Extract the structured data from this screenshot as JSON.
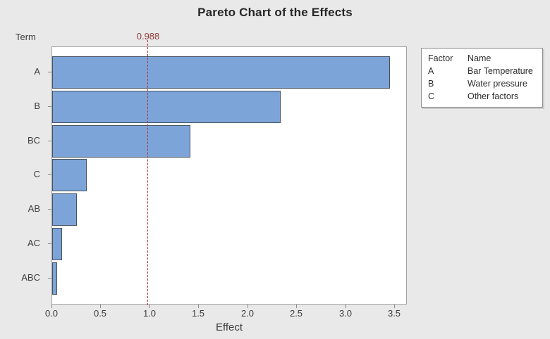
{
  "title": "Pareto Chart of the Effects",
  "chart_data": {
    "type": "bar",
    "orientation": "horizontal",
    "title": "Pareto Chart of the Effects",
    "ylabel": "Term",
    "xlabel": "Effect",
    "categories": [
      "A",
      "B",
      "BC",
      "C",
      "AB",
      "AC",
      "ABC"
    ],
    "values": [
      3.45,
      2.33,
      1.41,
      0.35,
      0.25,
      0.1,
      0.05
    ],
    "xlim": [
      0,
      3.63
    ],
    "x_tick_labels": [
      "0.0",
      "0.5",
      "1.0",
      "1.5",
      "2.0",
      "2.5",
      "3.0",
      "3.5"
    ],
    "reference_line": 0.988,
    "reference_label": "0.988",
    "grid": false,
    "legend_position": "top-right",
    "colors": {
      "bar_fill": "#7da4d8",
      "bar_border": "#46525e",
      "reference_line": "#b13b36",
      "reference_label": "#8e3b38",
      "plot_background": "#ffffff",
      "page_background": "#e9e9e9"
    }
  },
  "legend": {
    "headers": [
      "Factor",
      "Name"
    ],
    "rows": [
      {
        "factor": "A",
        "name": "Bar Temperature"
      },
      {
        "factor": "B",
        "name": "Water pressure"
      },
      {
        "factor": "C",
        "name": "Other factors"
      }
    ]
  }
}
